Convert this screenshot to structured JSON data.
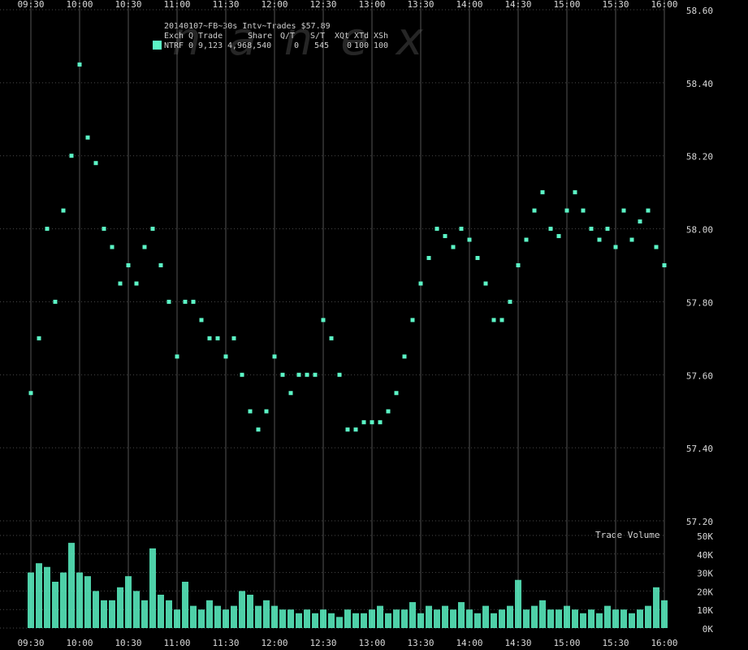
{
  "chart_data": [
    {
      "type": "scatter",
      "title": "20140107~FB~30s Intv~Trades $57.89",
      "watermark": "nanex",
      "legend_columns": [
        "Exch",
        "Q",
        "Trade",
        "Share",
        "Q/T",
        "S/T",
        "XQt",
        "XTd",
        "XSh"
      ],
      "legend_row": [
        "0",
        "9,123",
        "4,968,540",
        "0",
        "545",
        "0",
        "100",
        "100"
      ],
      "series": [
        {
          "name": "NTRF",
          "color": "#5cf5c6",
          "x": [
            "09:30",
            "09:35",
            "09:40",
            "09:45",
            "09:50",
            "09:55",
            "10:00",
            "10:05",
            "10:10",
            "10:15",
            "10:20",
            "10:25",
            "10:30",
            "10:35",
            "10:40",
            "10:45",
            "10:50",
            "10:55",
            "11:00",
            "11:05",
            "11:10",
            "11:15",
            "11:20",
            "11:25",
            "11:30",
            "11:35",
            "11:40",
            "11:45",
            "11:50",
            "11:55",
            "12:00",
            "12:05",
            "12:10",
            "12:15",
            "12:20",
            "12:25",
            "12:30",
            "12:35",
            "12:40",
            "12:45",
            "12:50",
            "12:55",
            "13:00",
            "13:05",
            "13:10",
            "13:15",
            "13:20",
            "13:25",
            "13:30",
            "13:35",
            "13:40",
            "13:45",
            "13:50",
            "13:55",
            "14:00",
            "14:05",
            "14:10",
            "14:15",
            "14:20",
            "14:25",
            "14:30",
            "14:35",
            "14:40",
            "14:45",
            "14:50",
            "14:55",
            "15:00",
            "15:05",
            "15:10",
            "15:15",
            "15:20",
            "15:25",
            "15:30",
            "15:35",
            "15:40",
            "15:45",
            "15:50",
            "15:55",
            "16:00"
          ],
          "values": [
            57.55,
            57.7,
            58.0,
            57.8,
            58.05,
            58.2,
            58.45,
            58.25,
            58.18,
            58.0,
            57.95,
            57.85,
            57.9,
            57.85,
            57.95,
            58.0,
            57.9,
            57.8,
            57.65,
            57.8,
            57.8,
            57.75,
            57.7,
            57.7,
            57.65,
            57.7,
            57.6,
            57.5,
            57.45,
            57.5,
            57.65,
            57.6,
            57.55,
            57.6,
            57.6,
            57.6,
            57.75,
            57.7,
            57.6,
            57.45,
            57.45,
            57.47,
            57.47,
            57.47,
            57.5,
            57.55,
            57.65,
            57.75,
            57.85,
            57.92,
            58.0,
            57.98,
            57.95,
            58.0,
            57.97,
            57.92,
            57.85,
            57.75,
            57.75,
            57.8,
            57.9,
            57.97,
            58.05,
            58.1,
            58.0,
            57.98,
            58.05,
            58.1,
            58.05,
            58.0,
            57.97,
            58.0,
            57.95,
            58.05,
            57.97,
            58.02,
            58.05,
            57.95,
            57.9
          ]
        }
      ],
      "xlim": [
        "09:30",
        "16:00"
      ],
      "xticks": [
        "09:30",
        "10:00",
        "10:30",
        "11:00",
        "11:30",
        "12:00",
        "12:30",
        "13:00",
        "13:30",
        "14:00",
        "14:30",
        "15:00",
        "15:30",
        "16:00"
      ],
      "ylim": [
        57.2,
        58.6
      ],
      "yticks": [
        {
          "value": 57.2,
          "label": "57.20"
        },
        {
          "value": 57.4,
          "label": "57.40"
        },
        {
          "value": 57.6,
          "label": "57.60"
        },
        {
          "value": 57.8,
          "label": "57.80"
        },
        {
          "value": 58.0,
          "label": "58.00"
        },
        {
          "value": 58.2,
          "label": "58.20"
        },
        {
          "value": 58.4,
          "label": "58.40"
        },
        {
          "value": 58.6,
          "label": "58.60"
        }
      ],
      "grid": true
    },
    {
      "type": "bar",
      "title": "Trade Volume",
      "color": "#5cf5c6",
      "x": [
        "09:30",
        "09:35",
        "09:40",
        "09:45",
        "09:50",
        "09:55",
        "10:00",
        "10:05",
        "10:10",
        "10:15",
        "10:20",
        "10:25",
        "10:30",
        "10:35",
        "10:40",
        "10:45",
        "10:50",
        "10:55",
        "11:00",
        "11:05",
        "11:10",
        "11:15",
        "11:20",
        "11:25",
        "11:30",
        "11:35",
        "11:40",
        "11:45",
        "11:50",
        "11:55",
        "12:00",
        "12:05",
        "12:10",
        "12:15",
        "12:20",
        "12:25",
        "12:30",
        "12:35",
        "12:40",
        "12:45",
        "12:50",
        "12:55",
        "13:00",
        "13:05",
        "13:10",
        "13:15",
        "13:20",
        "13:25",
        "13:30",
        "13:35",
        "13:40",
        "13:45",
        "13:50",
        "13:55",
        "14:00",
        "14:05",
        "14:10",
        "14:15",
        "14:20",
        "14:25",
        "14:30",
        "14:35",
        "14:40",
        "14:45",
        "14:50",
        "14:55",
        "15:00",
        "15:05",
        "15:10",
        "15:15",
        "15:20",
        "15:25",
        "15:30",
        "15:35",
        "15:40",
        "15:45",
        "15:50",
        "15:55",
        "16:00"
      ],
      "values": [
        30000,
        35000,
        33000,
        25000,
        30000,
        46000,
        30000,
        28000,
        20000,
        15000,
        15000,
        22000,
        28000,
        20000,
        15000,
        43000,
        18000,
        15000,
        10000,
        25000,
        12000,
        10000,
        15000,
        12000,
        10000,
        12000,
        20000,
        18000,
        12000,
        15000,
        12000,
        10000,
        10000,
        8000,
        10000,
        8000,
        10000,
        8000,
        6000,
        10000,
        8000,
        8000,
        10000,
        12000,
        8000,
        10000,
        10000,
        14000,
        8000,
        12000,
        10000,
        12000,
        10000,
        14000,
        10000,
        8000,
        12000,
        8000,
        10000,
        12000,
        26000,
        10000,
        12000,
        15000,
        10000,
        10000,
        12000,
        10000,
        8000,
        10000,
        8000,
        12000,
        10000,
        10000,
        8000,
        10000,
        12000,
        22000,
        15000
      ],
      "xlim": [
        "09:30",
        "16:00"
      ],
      "xticks": [
        "09:30",
        "10:00",
        "10:30",
        "11:00",
        "11:30",
        "12:00",
        "12:30",
        "13:00",
        "13:30",
        "14:00",
        "14:30",
        "15:00",
        "15:30",
        "16:00"
      ],
      "ylim": [
        0,
        50000
      ],
      "yticks": [
        {
          "value": 0,
          "label": "0K"
        },
        {
          "value": 10000,
          "label": "10K"
        },
        {
          "value": 20000,
          "label": "20K"
        },
        {
          "value": 30000,
          "label": "30K"
        },
        {
          "value": 40000,
          "label": "40K"
        },
        {
          "value": 50000,
          "label": "50K"
        }
      ],
      "grid": true
    }
  ]
}
